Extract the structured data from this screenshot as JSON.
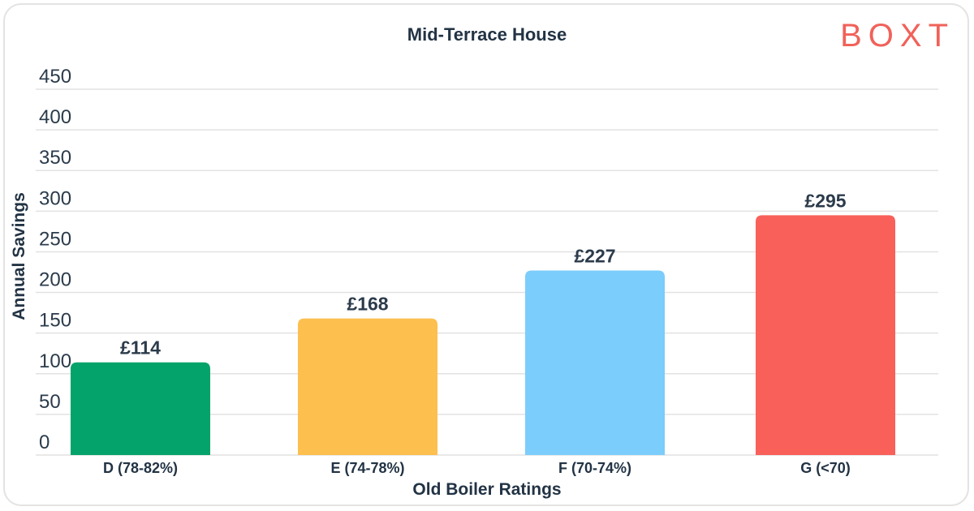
{
  "brand": {
    "logo_text": "BOXT",
    "logo_color": "#f0625a"
  },
  "chart_data": {
    "type": "bar",
    "title": "Mid-Terrace House",
    "xlabel": "Old Boiler Ratings",
    "ylabel": "Annual Savings",
    "ylim": [
      0,
      450
    ],
    "yticks": [
      0,
      50,
      100,
      150,
      200,
      250,
      300,
      350,
      400,
      450
    ],
    "grid": true,
    "categories": [
      "D (78-82%)",
      "E (74-78%)",
      "F (70-74%)",
      "G (<70)"
    ],
    "values": [
      114,
      168,
      227,
      295
    ],
    "data_labels": [
      "£114",
      "£168",
      "£227",
      "£295"
    ],
    "colors": [
      "#04a36b",
      "#fdbf4e",
      "#7bcdfb",
      "#f9605a"
    ]
  }
}
